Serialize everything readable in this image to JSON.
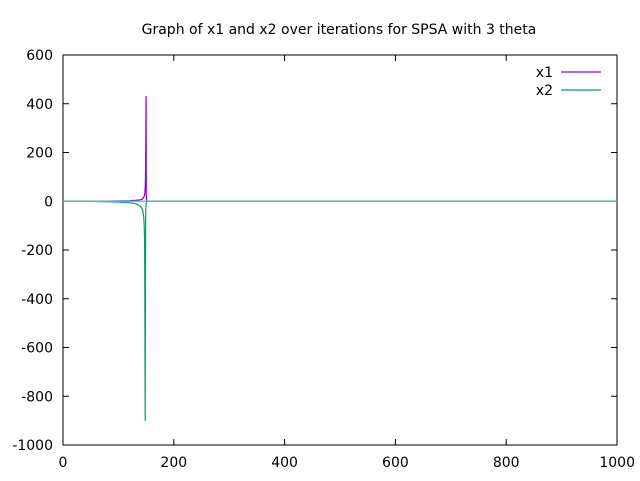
{
  "chart_data": {
    "type": "line",
    "title": "Graph of x1 and x2 over iterations for SPSA with 3 theta",
    "xlabel": "",
    "ylabel": "",
    "xlim": [
      0,
      1000
    ],
    "ylim": [
      -1000,
      600
    ],
    "xticks": [
      0,
      200,
      400,
      600,
      800,
      1000
    ],
    "yticks": [
      -1000,
      -800,
      -600,
      -400,
      -200,
      0,
      200,
      400,
      600
    ],
    "grid": false,
    "legend_position": "top-right",
    "series": [
      {
        "name": "x1",
        "color": "#9400d3",
        "x": [
          0,
          20,
          40,
          60,
          80,
          100,
          110,
          120,
          126,
          132,
          136,
          139,
          141,
          143,
          144,
          145,
          146,
          147,
          147.7,
          148.3,
          148.8,
          149.2,
          149.5,
          149.8,
          150,
          150.3,
          151,
          153,
          160,
          200,
          400,
          600,
          800,
          1000
        ],
        "y": [
          0,
          0,
          0,
          0,
          0.5,
          1,
          1.5,
          2,
          3,
          4,
          5,
          6,
          7,
          9,
          11,
          14,
          18,
          24,
          35,
          55,
          90,
          160,
          260,
          380,
          430,
          30,
          2,
          0,
          0,
          0,
          0,
          0,
          0,
          0
        ]
      },
      {
        "name": "x2",
        "color": "#009e73",
        "x": [
          0,
          20,
          40,
          60,
          80,
          100,
          110,
          120,
          126,
          132,
          136,
          139,
          141,
          143,
          144,
          145,
          146,
          146.6,
          147.1,
          147.5,
          147.8,
          148.1,
          148.4,
          148.8,
          149.3,
          150,
          152,
          160,
          200,
          400,
          600,
          800,
          1000
        ],
        "y": [
          0,
          0,
          -0.5,
          -1,
          -2,
          -3,
          -4,
          -6,
          -8,
          -11,
          -15,
          -19,
          -24,
          -32,
          -40,
          -52,
          -72,
          -100,
          -150,
          -250,
          -450,
          -700,
          -900,
          -350,
          -50,
          -5,
          0,
          0,
          0,
          0,
          0,
          0,
          0
        ]
      },
      {
        "name": "",
        "color": "#56b4e9",
        "x": [
          0,
          1000
        ],
        "y": [
          0,
          0
        ]
      }
    ]
  }
}
